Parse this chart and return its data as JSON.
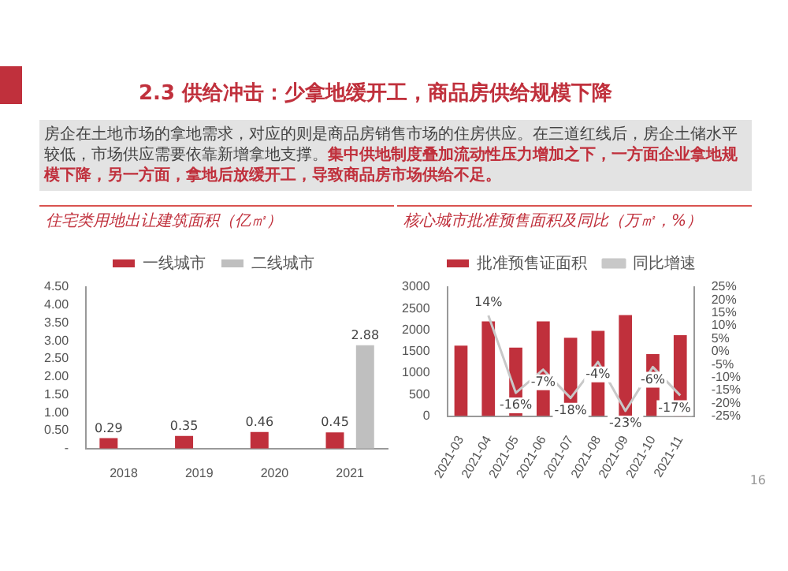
{
  "chart_data": [
    {
      "type": "other",
      "title": "2.3 供给冲击：少拿地缓开工，商品房供给规模下降",
      "annotations": [
        "房企在土地市场的拿地需求，对应的则是商品房销售市场的住房供应。在三道红线后，房企土储水平较低，市场供应需要依靠新增拿地支撑。",
        "集中供地制度叠加流动性压力增加之下，一方面企业拿地规模下降，另一方面，拿地后放缓开工，导致商品房市场供给不足。",
        "16"
      ]
    },
    {
      "type": "bar",
      "title": "住宅类用地出让建筑面积（亿㎡）",
      "categories": [
        "2018",
        "2019",
        "2020",
        "2021"
      ],
      "legend": "top",
      "ylim": [
        0,
        4.5
      ],
      "yticks": [
        {
          "value": 0,
          "label": "-"
        },
        {
          "value": 0.5,
          "label": "0.50"
        },
        {
          "value": 1,
          "label": "1.00"
        },
        {
          "value": 1.5,
          "label": "1.50"
        },
        {
          "value": 2,
          "label": "2.00"
        },
        {
          "value": 2.5,
          "label": "2.50"
        },
        {
          "value": 3,
          "label": "3.00"
        },
        {
          "value": 3.5,
          "label": "3.50"
        },
        {
          "value": 4,
          "label": "4.00"
        },
        {
          "value": 4.5,
          "label": "4.50"
        }
      ],
      "series": [
        {
          "name": "一线城市",
          "color": "#c0303c",
          "values": [
            0.29,
            0.35,
            0.46,
            0.45
          ],
          "value_labels": [
            "0.29",
            "0.35",
            "0.46",
            "0.45"
          ]
        },
        {
          "name": "二线城市",
          "color": "#bfbfbf",
          "values": [
            null,
            null,
            null,
            2.88
          ],
          "value_labels": [
            null,
            null,
            null,
            "2.88"
          ]
        }
      ]
    },
    {
      "type": "bar",
      "title": "核心城市批准预售面积及同比（万㎡，%）",
      "categories": [
        "2021-03",
        "2021-04",
        "2021-05",
        "2021-06",
        "2021-07",
        "2021-08",
        "2021-09",
        "2021-10",
        "2021-11"
      ],
      "legend": "top",
      "marker": "none",
      "ylim": [
        0,
        3000
      ],
      "yticks": [
        0,
        500,
        1000,
        1500,
        2000,
        2500,
        3000
      ],
      "y2lim": [
        -25,
        25
      ],
      "y2ticks": [
        {
          "value": -25,
          "label": "-25%"
        },
        {
          "value": -20,
          "label": "-20%"
        },
        {
          "value": -15,
          "label": "-15%"
        },
        {
          "value": -10,
          "label": "-10%"
        },
        {
          "value": -5,
          "label": "-5%"
        },
        {
          "value": 0,
          "label": "0%"
        },
        {
          "value": 5,
          "label": "5%"
        },
        {
          "value": 10,
          "label": "10%"
        },
        {
          "value": 15,
          "label": "15%"
        },
        {
          "value": 20,
          "label": "20%"
        },
        {
          "value": 25,
          "label": "25%"
        }
      ],
      "series": [
        {
          "name": "批准预售证面积",
          "color": "#c0303c",
          "values": [
            1640,
            2200,
            1590,
            2200,
            1820,
            1980,
            2350,
            1440,
            1880
          ]
        },
        {
          "name": "同比增速",
          "type": "line",
          "axis": "y2",
          "color": "#c8c8c8",
          "values": [
            null,
            14,
            -16,
            -7,
            -18,
            -4,
            -23,
            -6,
            -17
          ],
          "value_labels": [
            null,
            "14%",
            "-16%",
            "-7%",
            "-18%",
            "-4%",
            "-23%",
            "-6%",
            "-17%"
          ]
        }
      ]
    }
  ]
}
